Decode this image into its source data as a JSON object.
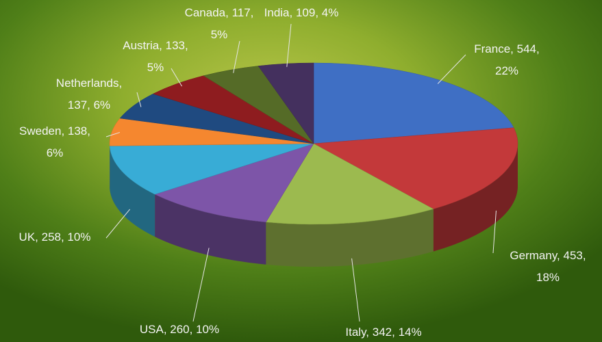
{
  "chart_data": {
    "type": "pie",
    "categories": [
      "France",
      "Germany",
      "Italy",
      "USA",
      "UK",
      "Sweden",
      "Netherlands",
      "Austria",
      "Canada",
      "India"
    ],
    "values": [
      544,
      453,
      342,
      260,
      258,
      138,
      137,
      133,
      117,
      109
    ],
    "value_labels": [
      [
        "France, 544,",
        "22%"
      ],
      [
        "Germany, 453,",
        "18%"
      ],
      [
        "Italy, 342, 14%"
      ],
      [
        "USA, 260, 10%"
      ],
      [
        "UK, 258, 10%"
      ],
      [
        "Sweden, 138,",
        "6%"
      ],
      [
        "Netherlands,",
        "137, 6%"
      ],
      [
        "Austria, 133,",
        "5%"
      ],
      [
        "Canada, 117,",
        "5%"
      ],
      [
        "India, 109, 4%"
      ]
    ],
    "colors": [
      "#3f6fc4",
      "#c3393a",
      "#9cba4f",
      "#7d55a8",
      "#38acd6",
      "#f5872f",
      "#1f4a80",
      "#8e1c1f",
      "#556b27",
      "#44305e"
    ]
  }
}
